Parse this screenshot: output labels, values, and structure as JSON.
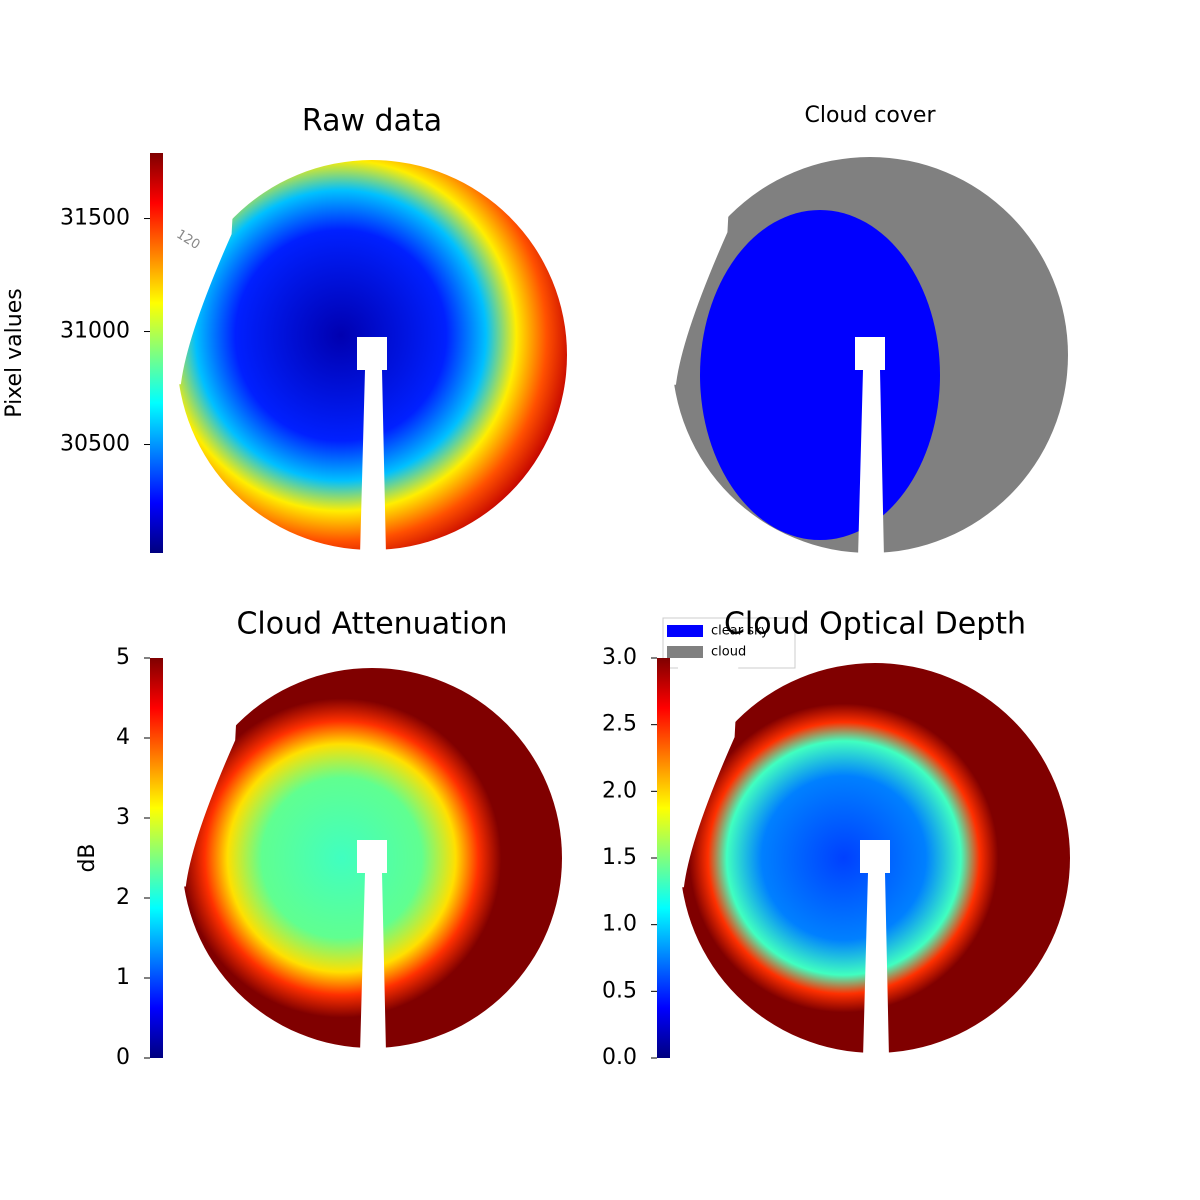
{
  "chart_data": [
    {
      "type": "image",
      "title": "Raw data",
      "colormap": "jet",
      "colorbar_label": "Pixel values",
      "clim": [
        30020,
        31790
      ],
      "ticks": [
        30500,
        31000,
        31500
      ],
      "annotations": [
        "120"
      ]
    },
    {
      "type": "mask",
      "title": "Cloud cover",
      "series": [
        {
          "name": "clear sky",
          "color": "#0000ff"
        },
        {
          "name": "cloud",
          "color": "#808080"
        }
      ],
      "legend": "upper left"
    },
    {
      "type": "image",
      "title": "Cloud Attenuation",
      "colormap": "jet",
      "colorbar_label": "dB",
      "clim": [
        0,
        5
      ],
      "ticks": [
        0,
        1,
        2,
        3,
        4,
        5
      ]
    },
    {
      "type": "image",
      "title": "Cloud Optical Depth",
      "colormap": "jet",
      "clim": [
        0,
        3
      ],
      "ticks": [
        {
          "value": 0,
          "label": "0.0"
        },
        {
          "value": 0.5,
          "label": "0.5"
        },
        {
          "value": 1,
          "label": "1.0"
        },
        {
          "value": 1.5,
          "label": "1.5"
        },
        {
          "value": 2,
          "label": "2.0"
        },
        {
          "value": 2.5,
          "label": "2.5"
        },
        {
          "value": 3,
          "label": "3.0"
        }
      ]
    }
  ]
}
